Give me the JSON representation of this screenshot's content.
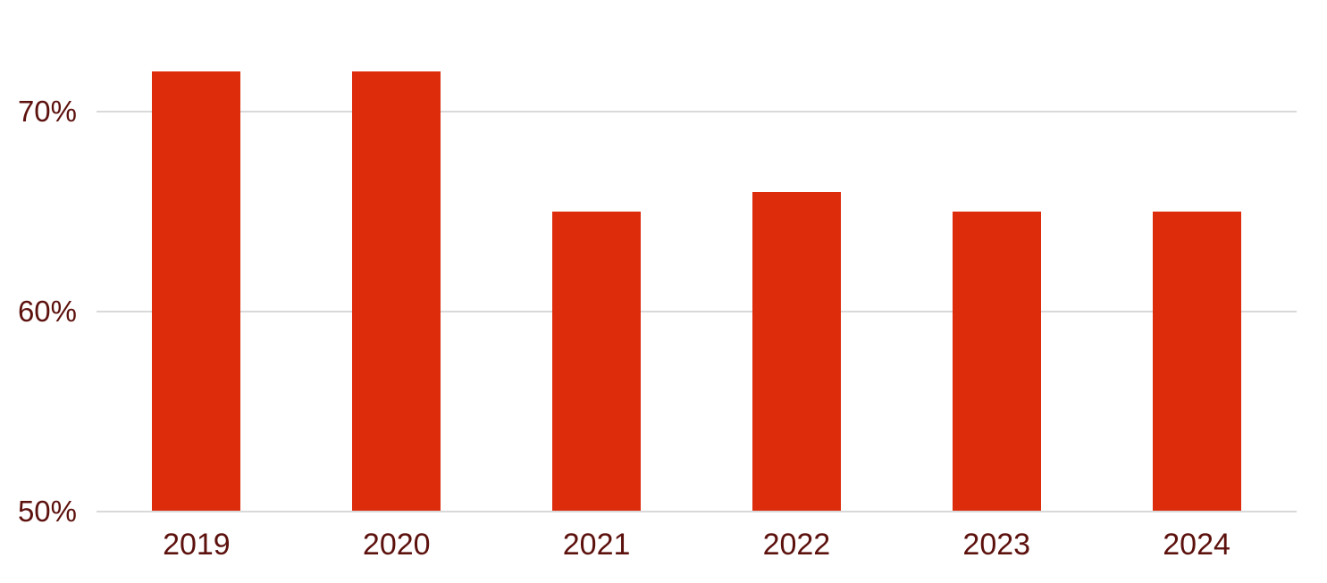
{
  "chart_data": {
    "type": "bar",
    "title": "",
    "xlabel": "",
    "ylabel": "",
    "categories": [
      "2019",
      "2020",
      "2021",
      "2022",
      "2023",
      "2024"
    ],
    "values": [
      72,
      72,
      65,
      66,
      65,
      65
    ],
    "unit": "%",
    "ylim": [
      50,
      75.6
    ],
    "yticks": [
      {
        "value": 50,
        "label": "50%"
      },
      {
        "value": 60,
        "label": "60%"
      },
      {
        "value": 70,
        "label": "70%"
      }
    ],
    "grid": true,
    "legend": false,
    "colors": {
      "bar": "#DC2C0C",
      "label_text": "#5C110D",
      "gridline": "#D9D9D9",
      "background": "#FFFFFF"
    }
  }
}
